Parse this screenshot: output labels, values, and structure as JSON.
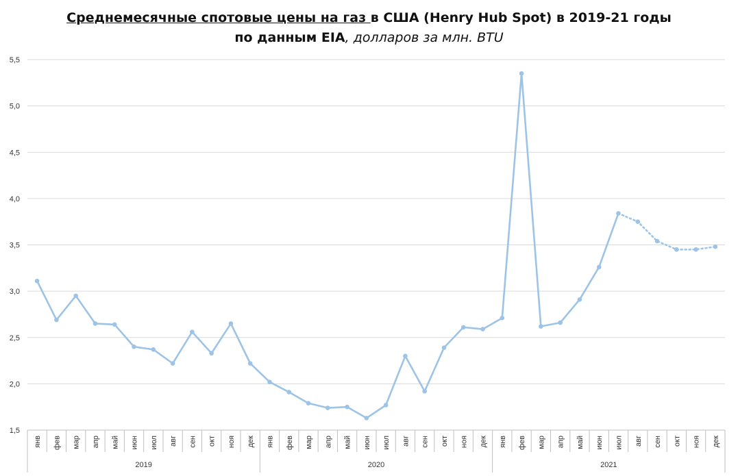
{
  "title": {
    "line1_underlined": "Среднемесячные спотовые цены на газ ",
    "line1_rest": "в США (Henry Hub Spot) в 2019-21 годы",
    "line2_bold": "по данным EIA",
    "line2_italic": ", долларов за млн. BTU"
  },
  "colors": {
    "series": "#9dc3e6",
    "grid": "#d9d9d9",
    "axis": "#bfbfbf"
  },
  "chart_data": {
    "type": "line",
    "title": "Среднемесячные спотовые цены на газ в США (Henry Hub Spot) в 2019-21 годы по данным EIA, долларов за млн. BTU",
    "categories": [
      "янв",
      "фев",
      "мар",
      "апр",
      "май",
      "июн",
      "июл",
      "авг",
      "сен",
      "окт",
      "ноя",
      "дек",
      "янв",
      "фев",
      "мар",
      "апр",
      "май",
      "июн",
      "июл",
      "авг",
      "сен",
      "окт",
      "ноя",
      "дек",
      "янв",
      "фев",
      "мар",
      "апр",
      "май",
      "июн",
      "июл",
      "авг",
      "сен",
      "окт",
      "ноя",
      "дек"
    ],
    "groups": [
      {
        "label": "2019",
        "count": 12
      },
      {
        "label": "2020",
        "count": 12
      },
      {
        "label": "2021",
        "count": 12
      }
    ],
    "values": [
      3.11,
      2.69,
      2.95,
      2.65,
      2.64,
      2.4,
      2.37,
      2.22,
      2.56,
      2.33,
      2.65,
      2.22,
      2.02,
      1.91,
      1.79,
      1.74,
      1.75,
      1.63,
      1.77,
      2.3,
      1.92,
      2.39,
      2.61,
      2.59,
      2.71,
      5.35,
      2.62,
      2.66,
      2.91,
      3.26,
      3.84,
      3.75,
      3.54,
      3.45,
      3.45,
      3.48
    ],
    "forecast_start_index": 30,
    "ylim": [
      1.5,
      5.5
    ],
    "yticks": [
      "1,5",
      "2,0",
      "2,5",
      "3,0",
      "3,5",
      "4,0",
      "4,5",
      "5,0",
      "5,5"
    ],
    "grid": true,
    "legend": "none"
  }
}
